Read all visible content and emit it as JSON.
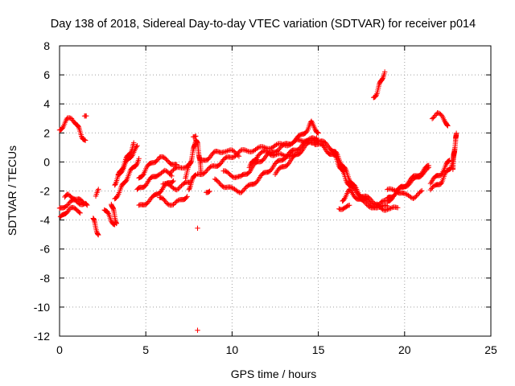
{
  "chart_data": {
    "type": "scatter",
    "title": "Day 138 of 2018, Sidereal Day-to-day VTEC variation (SDTVAR) for receiver p014",
    "xlabel": "GPS time / hours",
    "ylabel": "SDTVAR / TECUs",
    "xlim": [
      0,
      25
    ],
    "ylim": [
      -12,
      8
    ],
    "xticks": [
      "0",
      "5",
      "10",
      "15",
      "20",
      "25"
    ],
    "yticks": [
      "-12",
      "-10",
      "-8",
      "-6",
      "-4",
      "-2",
      "0",
      "2",
      "4",
      "6",
      "8"
    ],
    "grid": true,
    "marker": "+",
    "series": [
      {
        "name": "p014",
        "color": "#ff0000",
        "tracks": [
          [
            [
              0.0,
              2.2
            ],
            [
              0.2,
              2.5
            ],
            [
              0.45,
              2.9
            ],
            [
              0.7,
              3.0
            ],
            [
              0.9,
              2.8
            ],
            [
              1.1,
              2.3
            ],
            [
              1.3,
              1.8
            ],
            [
              1.5,
              1.4
            ]
          ],
          [
            [
              1.45,
              3.1
            ],
            [
              1.55,
              3.2
            ]
          ],
          [
            [
              0.0,
              -3.3
            ],
            [
              0.3,
              -3.0
            ],
            [
              0.6,
              -2.8
            ],
            [
              0.9,
              -2.7
            ],
            [
              1.2,
              -2.8
            ],
            [
              1.5,
              -2.9
            ],
            [
              1.6,
              -3.1
            ]
          ],
          [
            [
              0.05,
              -3.9
            ],
            [
              0.3,
              -3.5
            ],
            [
              0.6,
              -3.2
            ],
            [
              0.9,
              -3.3
            ],
            [
              1.2,
              -3.4
            ]
          ],
          [
            [
              0.3,
              -2.5
            ],
            [
              0.5,
              -2.3
            ],
            [
              0.8,
              -2.4
            ],
            [
              1.1,
              -2.6
            ],
            [
              1.4,
              -2.9
            ]
          ],
          [
            [
              1.95,
              -3.9
            ],
            [
              2.1,
              -4.5
            ],
            [
              2.25,
              -5.0
            ]
          ],
          [
            [
              2.1,
              -2.3
            ],
            [
              2.25,
              -2.0
            ]
          ],
          [
            [
              2.6,
              -3.2
            ],
            [
              2.8,
              -3.6
            ],
            [
              3.0,
              -4.0
            ],
            [
              3.2,
              -4.3
            ]
          ],
          [
            [
              3.0,
              -2.8
            ],
            [
              3.15,
              -3.5
            ],
            [
              3.3,
              -4.2
            ]
          ],
          [
            [
              3.2,
              -1.5
            ],
            [
              3.4,
              -1.0
            ],
            [
              3.6,
              -0.5
            ],
            [
              3.8,
              0.0
            ],
            [
              4.0,
              0.5
            ],
            [
              4.2,
              0.9
            ],
            [
              4.3,
              1.2
            ]
          ],
          [
            [
              3.2,
              -2.5
            ],
            [
              3.5,
              -2.0
            ],
            [
              3.8,
              -1.3
            ],
            [
              4.1,
              -0.7
            ],
            [
              4.4,
              -0.2
            ],
            [
              4.6,
              0.2
            ]
          ],
          [
            [
              3.4,
              -0.9
            ],
            [
              3.7,
              -0.4
            ],
            [
              4.0,
              0.2
            ],
            [
              4.3,
              0.7
            ],
            [
              4.5,
              1.0
            ]
          ],
          [
            [
              4.6,
              -1.2
            ],
            [
              5.0,
              -0.5
            ],
            [
              5.4,
              0.0
            ],
            [
              5.8,
              0.3
            ],
            [
              6.3,
              0.1
            ],
            [
              6.8,
              -0.3
            ]
          ],
          [
            [
              4.6,
              -3.1
            ],
            [
              5.0,
              -2.8
            ],
            [
              5.4,
              -2.5
            ],
            [
              5.8,
              -2.0
            ],
            [
              6.2,
              -1.6
            ],
            [
              6.6,
              -1.2
            ]
          ],
          [
            [
              4.5,
              -2.0
            ],
            [
              4.9,
              -1.6
            ],
            [
              5.3,
              -1.2
            ],
            [
              5.7,
              -0.8
            ],
            [
              6.1,
              -0.7
            ],
            [
              6.5,
              -0.9
            ]
          ],
          [
            [
              5.8,
              -2.5
            ],
            [
              6.2,
              -2.8
            ],
            [
              6.6,
              -2.9
            ],
            [
              7.0,
              -2.7
            ],
            [
              7.4,
              -2.3
            ]
          ],
          [
            [
              6.0,
              -1.5
            ],
            [
              6.4,
              -1.7
            ],
            [
              6.8,
              -1.8
            ],
            [
              7.2,
              -1.6
            ],
            [
              7.6,
              -1.3
            ]
          ],
          [
            [
              6.4,
              -0.7
            ],
            [
              6.8,
              -0.5
            ],
            [
              7.2,
              -0.3
            ],
            [
              7.6,
              -0.1
            ]
          ],
          [
            [
              7.3,
              -1.0
            ],
            [
              7.6,
              0.0
            ],
            [
              7.8,
              1.0
            ],
            [
              7.9,
              1.6
            ],
            [
              8.0,
              1.2
            ],
            [
              8.1,
              0.4
            ],
            [
              8.2,
              -0.6
            ]
          ],
          [
            [
              7.5,
              -1.8
            ],
            [
              7.7,
              -1.3
            ],
            [
              7.9,
              -0.8
            ]
          ],
          [
            [
              7.75,
              1.8
            ],
            [
              7.9,
              1.9
            ]
          ],
          [
            [
              8.5,
              -2.1
            ],
            [
              8.7,
              -1.9
            ]
          ],
          [
            [
              8.0,
              -0.9
            ],
            [
              8.5,
              -0.6
            ],
            [
              9.0,
              -0.3
            ],
            [
              9.5,
              0.1
            ],
            [
              10.0,
              0.4
            ],
            [
              10.5,
              0.7
            ],
            [
              11.0,
              0.8
            ],
            [
              11.5,
              0.9
            ],
            [
              12.0,
              1.0
            ],
            [
              12.5,
              1.1
            ],
            [
              13.0,
              1.2
            ],
            [
              13.5,
              1.3
            ],
            [
              14.0,
              1.5
            ],
            [
              14.5,
              1.6
            ],
            [
              14.8,
              1.5
            ]
          ],
          [
            [
              8.2,
              0.0
            ],
            [
              8.6,
              0.3
            ],
            [
              9.0,
              0.6
            ],
            [
              9.5,
              0.8
            ],
            [
              10.0,
              0.7
            ],
            [
              10.4,
              0.5
            ]
          ],
          [
            [
              9.0,
              -1.3
            ],
            [
              9.5,
              -1.6
            ],
            [
              10.0,
              -1.9
            ],
            [
              10.5,
              -2.0
            ],
            [
              11.0,
              -1.7
            ],
            [
              11.5,
              -1.2
            ],
            [
              12.0,
              -0.7
            ],
            [
              12.5,
              -0.2
            ],
            [
              13.0,
              0.3
            ],
            [
              13.5,
              0.7
            ],
            [
              14.0,
              1.1
            ],
            [
              14.5,
              1.5
            ],
            [
              14.9,
              1.7
            ]
          ],
          [
            [
              9.5,
              -0.7
            ],
            [
              10.0,
              -0.9
            ],
            [
              10.5,
              -1.1
            ],
            [
              11.0,
              -0.6
            ],
            [
              11.5,
              0.0
            ],
            [
              12.0,
              0.4
            ],
            [
              12.5,
              0.8
            ],
            [
              13.0,
              1.1
            ],
            [
              13.5,
              1.4
            ],
            [
              14.0,
              1.8
            ],
            [
              14.4,
              2.3
            ],
            [
              14.6,
              2.7
            ],
            [
              14.8,
              2.4
            ],
            [
              15.0,
              1.9
            ]
          ],
          [
            [
              11.0,
              -0.4
            ],
            [
              11.5,
              0.5
            ],
            [
              12.0,
              0.7
            ],
            [
              12.5,
              0.5
            ],
            [
              13.0,
              0.4
            ],
            [
              13.5,
              0.6
            ]
          ],
          [
            [
              12.5,
              -0.8
            ],
            [
              13.0,
              -0.3
            ],
            [
              13.5,
              0.2
            ],
            [
              14.0,
              0.8
            ],
            [
              14.5,
              1.3
            ],
            [
              15.0,
              1.5
            ]
          ],
          [
            [
              14.8,
              1.3
            ],
            [
              15.2,
              1.1
            ],
            [
              15.6,
              0.7
            ],
            [
              16.0,
              0.3
            ],
            [
              16.3,
              -0.4
            ],
            [
              16.6,
              -1.2
            ],
            [
              17.0,
              -1.9
            ],
            [
              17.5,
              -2.3
            ],
            [
              18.0,
              -2.6
            ],
            [
              18.5,
              -2.9
            ],
            [
              19.0,
              -2.7
            ],
            [
              19.3,
              -2.4
            ]
          ],
          [
            [
              14.9,
              1.6
            ],
            [
              15.3,
              1.3
            ],
            [
              15.7,
              1.0
            ],
            [
              16.0,
              0.6
            ],
            [
              16.4,
              -0.2
            ],
            [
              16.7,
              -0.9
            ],
            [
              17.0,
              -1.6
            ],
            [
              17.4,
              -2.2
            ],
            [
              17.8,
              -2.7
            ],
            [
              18.2,
              -3.0
            ],
            [
              18.6,
              -3.2
            ],
            [
              19.0,
              -3.0
            ]
          ],
          [
            [
              16.4,
              -2.6
            ],
            [
              16.8,
              -2.0
            ],
            [
              17.2,
              -2.4
            ],
            [
              17.6,
              -2.8
            ],
            [
              18.0,
              -3.0
            ],
            [
              18.4,
              -3.2
            ]
          ],
          [
            [
              16.2,
              -3.2
            ],
            [
              16.5,
              -3.1
            ],
            [
              16.8,
              -3.1
            ]
          ],
          [
            [
              18.2,
              4.4
            ],
            [
              18.4,
              4.8
            ],
            [
              18.55,
              5.3
            ],
            [
              18.7,
              5.8
            ],
            [
              18.85,
              6.2
            ]
          ],
          [
            [
              18.4,
              -3.0
            ],
            [
              18.8,
              -3.2
            ],
            [
              19.2,
              -3.3
            ],
            [
              19.6,
              -3.1
            ]
          ],
          [
            [
              19.0,
              -2.6
            ],
            [
              19.4,
              -2.2
            ],
            [
              19.8,
              -1.8
            ],
            [
              20.2,
              -1.5
            ],
            [
              20.6,
              -1.2
            ],
            [
              21.0,
              -0.8
            ],
            [
              21.4,
              -0.5
            ]
          ],
          [
            [
              19.0,
              -2.0
            ],
            [
              19.5,
              -1.9
            ],
            [
              20.0,
              -2.3
            ],
            [
              20.5,
              -2.4
            ],
            [
              21.0,
              -2.1
            ]
          ],
          [
            [
              19.5,
              -2.1
            ],
            [
              20.0,
              -1.6
            ],
            [
              20.5,
              -1.1
            ],
            [
              21.0,
              -0.7
            ],
            [
              21.4,
              -0.3
            ]
          ],
          [
            [
              21.5,
              -1.9
            ],
            [
              21.8,
              -1.7
            ],
            [
              22.1,
              -1.4
            ],
            [
              22.4,
              -0.8
            ],
            [
              22.7,
              -0.3
            ],
            [
              22.85,
              0.3
            ],
            [
              22.9,
              1.0
            ]
          ],
          [
            [
              21.5,
              -1.4
            ],
            [
              21.8,
              -1.1
            ],
            [
              22.1,
              -0.8
            ],
            [
              22.4,
              -0.3
            ],
            [
              22.6,
              0.2
            ]
          ],
          [
            [
              21.6,
              3.1
            ],
            [
              21.9,
              3.3
            ],
            [
              22.2,
              3.1
            ],
            [
              22.4,
              2.8
            ],
            [
              22.5,
              2.4
            ]
          ],
          [
            [
              22.8,
              -0.4
            ],
            [
              22.85,
              0.5
            ],
            [
              22.95,
              1.3
            ],
            [
              23.0,
              2.1
            ]
          ],
          [
            [
              8.0,
              -4.5
            ]
          ],
          [
            [
              8.0,
              -11.6
            ]
          ]
        ]
      }
    ]
  }
}
